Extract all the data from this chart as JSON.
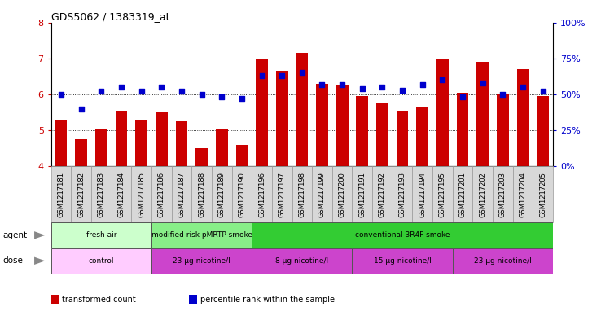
{
  "title": "GDS5062 / 1383319_at",
  "samples": [
    "GSM1217181",
    "GSM1217182",
    "GSM1217183",
    "GSM1217184",
    "GSM1217185",
    "GSM1217186",
    "GSM1217187",
    "GSM1217188",
    "GSM1217189",
    "GSM1217190",
    "GSM1217196",
    "GSM1217197",
    "GSM1217198",
    "GSM1217199",
    "GSM1217200",
    "GSM1217191",
    "GSM1217192",
    "GSM1217193",
    "GSM1217194",
    "GSM1217195",
    "GSM1217201",
    "GSM1217202",
    "GSM1217203",
    "GSM1217204",
    "GSM1217205"
  ],
  "bar_values": [
    5.3,
    4.75,
    5.05,
    5.55,
    5.3,
    5.5,
    5.25,
    4.5,
    5.05,
    4.6,
    7.0,
    6.65,
    7.15,
    6.3,
    6.25,
    5.95,
    5.75,
    5.55,
    5.65,
    7.0,
    6.05,
    6.9,
    6.0,
    6.7,
    5.95
  ],
  "dot_values": [
    50,
    40,
    52,
    55,
    52,
    55,
    52,
    50,
    48,
    47,
    63,
    63,
    65,
    57,
    57,
    54,
    55,
    53,
    57,
    60,
    48,
    58,
    50,
    55,
    52
  ],
  "ylim_left": [
    4,
    8
  ],
  "ylim_right": [
    0,
    100
  ],
  "yticks_left": [
    4,
    5,
    6,
    7,
    8
  ],
  "yticks_right": [
    0,
    25,
    50,
    75,
    100
  ],
  "bar_color": "#CC0000",
  "dot_color": "#0000CC",
  "background_color": "#ffffff",
  "agent_groups": [
    {
      "label": "fresh air",
      "start": 0,
      "end": 5,
      "color": "#ccffcc"
    },
    {
      "label": "modified risk pMRTP smoke",
      "start": 5,
      "end": 10,
      "color": "#88ee88"
    },
    {
      "label": "conventional 3R4F smoke",
      "start": 10,
      "end": 25,
      "color": "#33cc33"
    }
  ],
  "dose_groups": [
    {
      "label": "control",
      "start": 0,
      "end": 5,
      "color": "#ffccff"
    },
    {
      "label": "23 μg nicotine/l",
      "start": 5,
      "end": 10,
      "color": "#cc44cc"
    },
    {
      "label": "8 μg nicotine/l",
      "start": 10,
      "end": 15,
      "color": "#cc44cc"
    },
    {
      "label": "15 μg nicotine/l",
      "start": 15,
      "end": 20,
      "color": "#cc44cc"
    },
    {
      "label": "23 μg nicotine/l",
      "start": 20,
      "end": 25,
      "color": "#cc44cc"
    }
  ],
  "legend_items": [
    {
      "label": "transformed count",
      "color": "#CC0000"
    },
    {
      "label": "percentile rank within the sample",
      "color": "#0000CC"
    }
  ],
  "tick_label_fontsize": 6,
  "title_fontsize": 9
}
